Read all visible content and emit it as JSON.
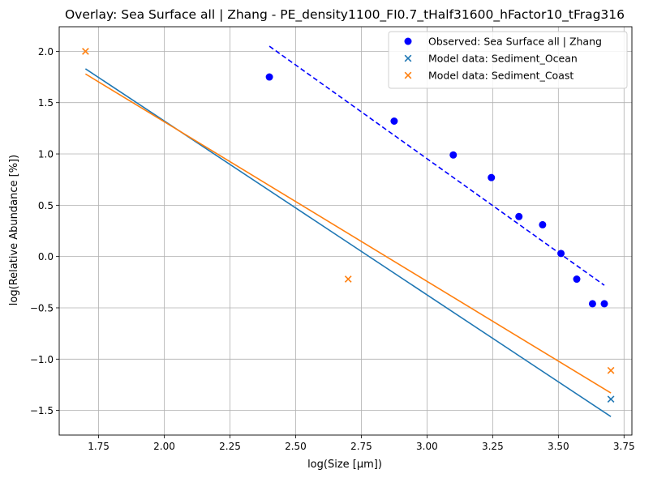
{
  "chart_data": {
    "type": "scatter",
    "title": "Overlay: Sea Surface all | Zhang - PE_density1100_FI0.7_tHalf31600_hFactor10_tFrag316",
    "xlabel": "log(Size [µm])",
    "ylabel": "log(Relative Abundance [%])",
    "xlim": [
      1.6,
      3.78
    ],
    "ylim": [
      -1.74,
      2.24
    ],
    "x_ticks": [
      1.75,
      2.0,
      2.25,
      2.5,
      2.75,
      3.0,
      3.25,
      3.5,
      3.75
    ],
    "x_tick_labels": [
      "1.75",
      "2.00",
      "2.25",
      "2.50",
      "2.75",
      "3.00",
      "3.25",
      "3.50",
      "3.75"
    ],
    "y_ticks": [
      -1.5,
      -1.0,
      -0.5,
      0.0,
      0.5,
      1.0,
      1.5,
      2.0
    ],
    "y_tick_labels": [
      "−1.5",
      "−1.0",
      "−0.5",
      "0.0",
      "0.5",
      "1.0",
      "1.5",
      "2.0"
    ],
    "grid": true,
    "legend_position": "top-right",
    "series": [
      {
        "name": "Observed: Sea Surface all | Zhang",
        "kind": "scatter",
        "marker": "circle",
        "color": "#0000ff",
        "x": [
          2.4,
          2.875,
          3.1,
          3.245,
          3.35,
          3.44,
          3.51,
          3.57,
          3.63,
          3.675
        ],
        "y": [
          1.75,
          1.32,
          0.99,
          0.77,
          0.39,
          0.31,
          0.03,
          -0.22,
          -0.46,
          -0.46
        ]
      },
      {
        "name": "Model data: Sediment_Ocean",
        "kind": "scatter",
        "marker": "x",
        "color": "#1f77b4",
        "x": [
          3.7
        ],
        "y": [
          -1.39
        ]
      },
      {
        "name": "Model data: Sediment_Coast",
        "kind": "scatter",
        "marker": "x",
        "color": "#ff7f0e",
        "x": [
          1.7,
          2.7,
          3.7
        ],
        "y": [
          2.0,
          -0.22,
          -1.11
        ]
      }
    ],
    "fit_lines": [
      {
        "color": "#0000ff",
        "dashed": true,
        "x": [
          2.4,
          3.675
        ],
        "y": [
          2.05,
          -0.28
        ]
      },
      {
        "color": "#1f77b4",
        "dashed": false,
        "x": [
          1.7,
          3.7
        ],
        "y": [
          1.83,
          -1.56
        ]
      },
      {
        "color": "#ff7f0e",
        "dashed": false,
        "x": [
          1.7,
          3.7
        ],
        "y": [
          1.78,
          -1.33
        ]
      }
    ]
  }
}
